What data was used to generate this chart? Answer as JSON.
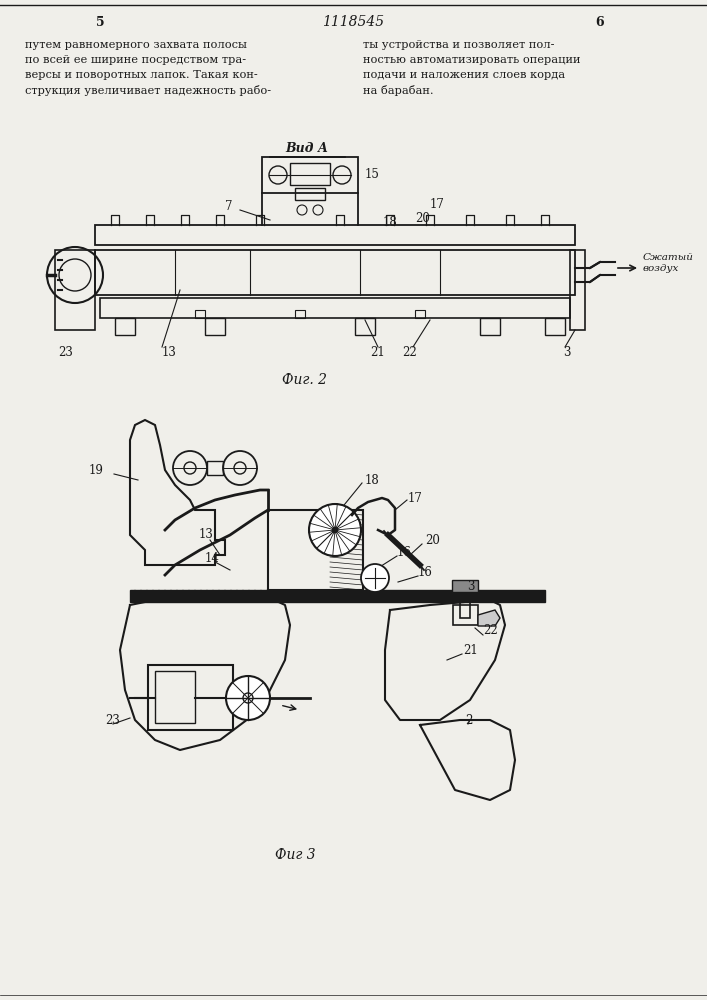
{
  "page_width": 7.07,
  "page_height": 10.0,
  "bg_color": "#f0efea",
  "header_text": "1118545",
  "page_left": "5",
  "page_right": "6",
  "text_left_col": [
    "путем равномерного захвата полосы",
    "по всей ее ширине посредством тра-",
    "версы и поворотных лапок. Такая кон-",
    "струкция увеличивает надежность рабо-"
  ],
  "text_right_col": [
    "ты устройства и позволяет пол-",
    "ностью автоматизировать операции",
    "подачи и наложения слоев корда",
    "на барабан."
  ],
  "fig2_caption": "Фиг. 2",
  "fig2_label": "Вид А",
  "fig3_caption": "Фиг 3",
  "line_color": "#1a1a1a",
  "compressed_air_label": "Сжатый\nвоздух"
}
